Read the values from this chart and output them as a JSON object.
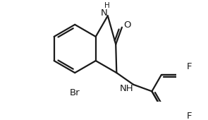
{
  "bg_color": "#ffffff",
  "line_color": "#1a1a1a",
  "line_width": 1.6,
  "fs": 8.5,
  "fss": 7.5,
  "xlim": [
    -1.8,
    4.2
  ],
  "ylim": [
    -2.2,
    2.0
  ],
  "hex_r": 1.0,
  "ph_r": 0.78
}
